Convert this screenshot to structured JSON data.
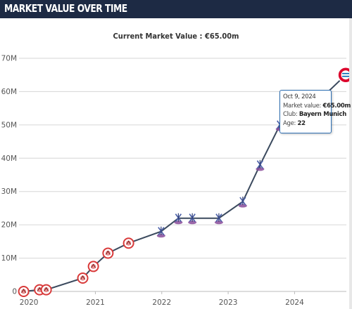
{
  "header": {
    "title": "MARKET VALUE OVER TIME"
  },
  "subtitle": "Current Market Value : €65.00m",
  "tooltip": {
    "date": "Oct 9, 2024",
    "market_value_label": "Market value:",
    "market_value": "€65.00m",
    "club_label": "Club:",
    "club": "Bayern Munich",
    "age_label": "Age:",
    "age": "22"
  },
  "colors": {
    "header_bg": "#1d2a44",
    "line": "#3b4a5e",
    "reading_badge": "#d93a3a",
    "palace_crest": "#8a4c9a",
    "bayern_badge": "#dc052d"
  },
  "chart_data": {
    "type": "line",
    "title": "Current Market Value : €65.00m",
    "xlabel": "",
    "ylabel": "",
    "x_ticks": [
      "2020",
      "2021",
      "2022",
      "2023",
      "2024"
    ],
    "y_ticks": [
      "0",
      "10M",
      "20M",
      "30M",
      "40M",
      "50M",
      "60M",
      "70M"
    ],
    "ylim": [
      0,
      70
    ],
    "xlim": [
      2019.85,
      2024.78
    ],
    "grid": true,
    "series": [
      {
        "values": [
          {
            "x": 2019.92,
            "y": 0.0,
            "club": "reading"
          },
          {
            "x": 2020.16,
            "y": 0.5,
            "club": "reading"
          },
          {
            "x": 2020.26,
            "y": 0.5,
            "club": "reading"
          },
          {
            "x": 2020.81,
            "y": 4.0,
            "club": "reading"
          },
          {
            "x": 2020.97,
            "y": 7.5,
            "club": "reading"
          },
          {
            "x": 2021.19,
            "y": 11.5,
            "club": "reading"
          },
          {
            "x": 2021.5,
            "y": 14.5,
            "club": "reading"
          },
          {
            "x": 2021.99,
            "y": 18.0,
            "club": "crystal-palace"
          },
          {
            "x": 2022.25,
            "y": 22.0,
            "club": "crystal-palace"
          },
          {
            "x": 2022.46,
            "y": 22.0,
            "club": "crystal-palace"
          },
          {
            "x": 2022.86,
            "y": 22.0,
            "club": "crystal-palace"
          },
          {
            "x": 2023.22,
            "y": 27.0,
            "club": "crystal-palace"
          },
          {
            "x": 2023.48,
            "y": 38.0,
            "club": "crystal-palace"
          },
          {
            "x": 2023.78,
            "y": 50.0,
            "club": "crystal-palace"
          },
          {
            "x": 2023.98,
            "y": 50.0,
            "club": "crystal-palace"
          },
          {
            "x": 2024.77,
            "y": 65.0,
            "club": "bayern-munich"
          }
        ]
      }
    ]
  }
}
